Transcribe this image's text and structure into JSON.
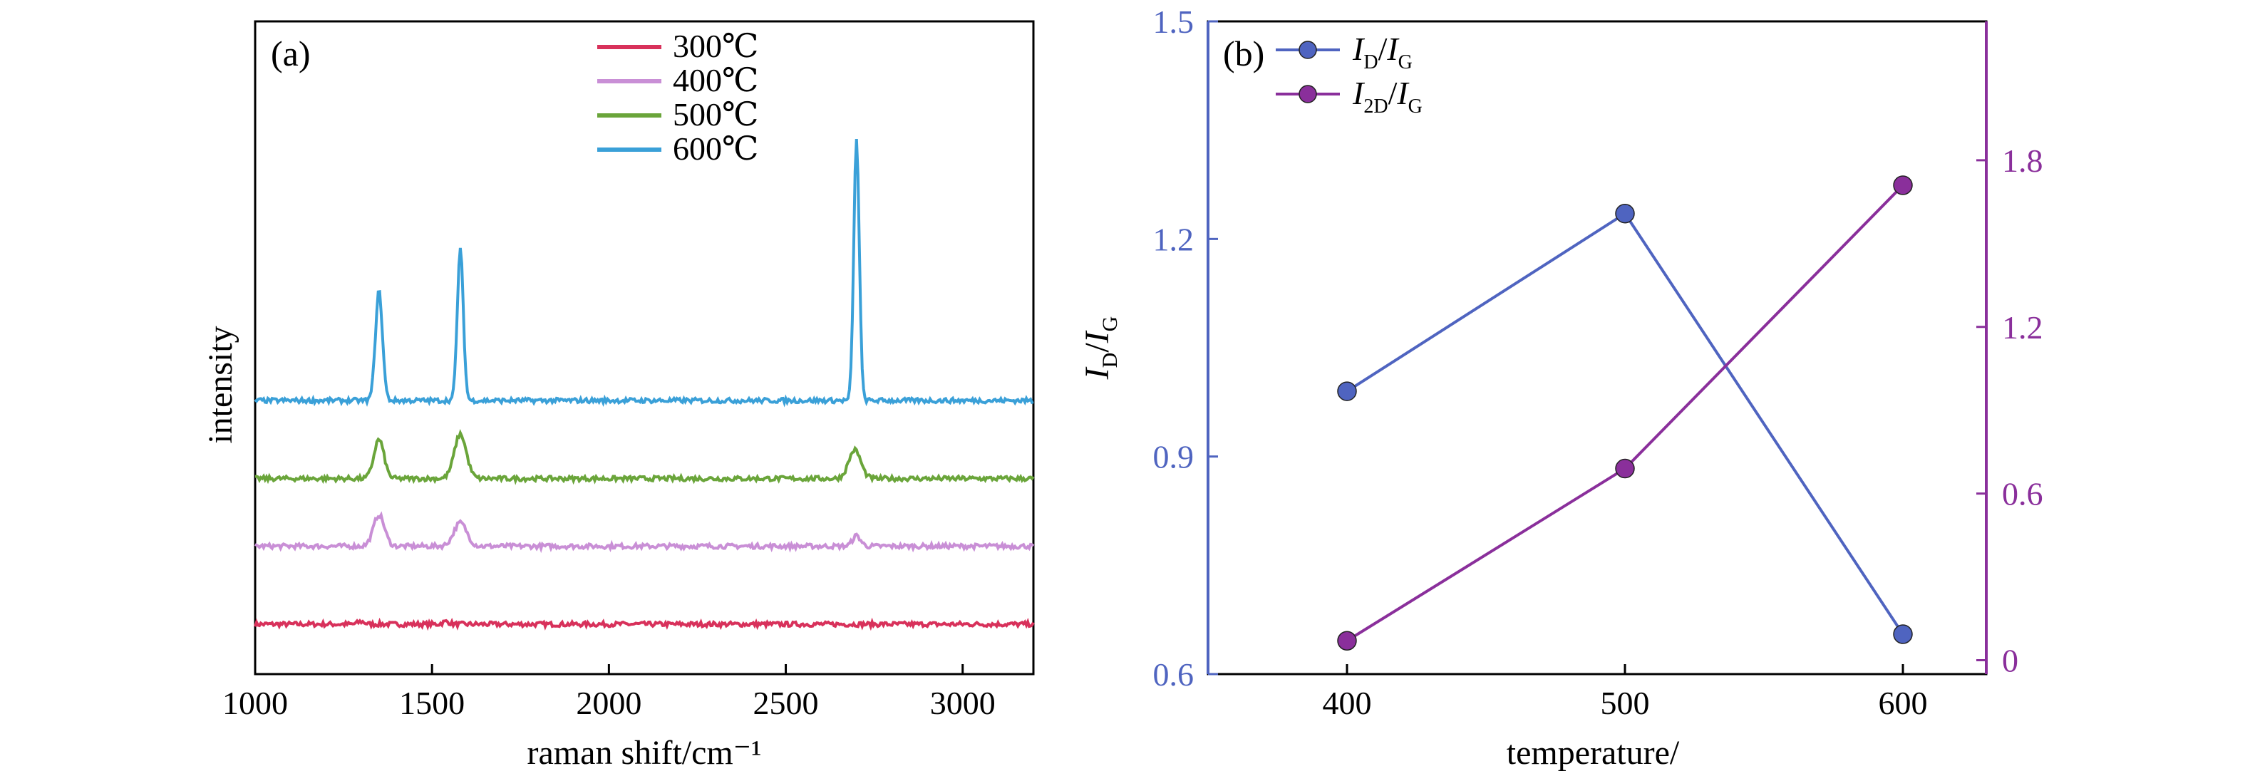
{
  "chart_data": [
    {
      "panel": "(a)",
      "type": "line",
      "xlabel": "raman shift/cm⁻¹",
      "ylabel": "intensity",
      "xlim": [
        1000,
        3200
      ],
      "xticks": [
        1000,
        1500,
        2000,
        2500,
        3000
      ],
      "y_ticks_shown": false,
      "legend_position": "top-center",
      "series": [
        {
          "name": "300℃",
          "color": "#d8315b",
          "offset": 0.0,
          "peaks": [
            {
              "x": 1300,
              "h": 0.05,
              "w": 14
            },
            {
              "x": 1540,
              "h": 0.05,
              "w": 14
            }
          ]
        },
        {
          "name": "400℃",
          "color": "#c98fd6",
          "offset": 1.5,
          "peaks": [
            {
              "x": 1350,
              "h": 0.6,
              "w": 22
            },
            {
              "x": 1580,
              "h": 0.45,
              "w": 26
            },
            {
              "x": 2700,
              "h": 0.2,
              "w": 16
            }
          ]
        },
        {
          "name": "500℃",
          "color": "#6aa53a",
          "offset": 2.8,
          "peaks": [
            {
              "x": 1350,
              "h": 0.75,
              "w": 20
            },
            {
              "x": 1580,
              "h": 0.85,
              "w": 24
            },
            {
              "x": 2695,
              "h": 0.55,
              "w": 24
            }
          ]
        },
        {
          "name": "600℃",
          "color": "#3aa0d8",
          "offset": 4.3,
          "peaks": [
            {
              "x": 1350,
              "h": 2.1,
              "w": 14
            },
            {
              "x": 1580,
              "h": 2.9,
              "w": 12
            },
            {
              "x": 2700,
              "h": 5.0,
              "w": 11
            }
          ]
        }
      ]
    },
    {
      "panel": "(b)",
      "type": "line",
      "xlabel": "temperature/",
      "ylabel_left": "I_D/I_G",
      "xlim": [
        350,
        630
      ],
      "xticks": [
        400,
        500,
        600
      ],
      "ylim_left": [
        0.6,
        1.5
      ],
      "yticks_left": [
        "0.6",
        "0.9",
        "1.2",
        "1.5"
      ],
      "ylim_right": [
        -0.05,
        2.3
      ],
      "yticks_right": [
        "0",
        "0.6",
        "1.2",
        "1.8"
      ],
      "legend_position": "top-left",
      "series": [
        {
          "name": "I_D/I_G",
          "color": "#4f64c0",
          "axis": "left",
          "x": [
            400,
            500,
            600
          ],
          "y": [
            0.99,
            1.235,
            0.655
          ]
        },
        {
          "name": "I_2D/I_G",
          "color": "#8a2f9b",
          "axis": "right",
          "x": [
            400,
            500,
            600
          ],
          "y": [
            0.07,
            0.69,
            1.71
          ]
        }
      ],
      "axis_colors": {
        "left": "#4f64c0",
        "right": "#8a2f9b"
      }
    }
  ]
}
